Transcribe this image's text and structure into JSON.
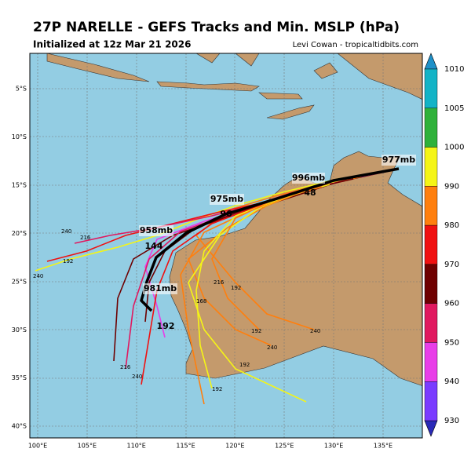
{
  "header": {
    "title": "27P NARELLE - GEFS Tracks and Min. MSLP (hPa)",
    "subtitle": "Initialized at 12z Mar 21 2026",
    "credit": "Levi Cowan - tropicaltidbits.com"
  },
  "map": {
    "lat_labels": [
      "5°S",
      "10°S",
      "15°S",
      "20°S",
      "25°S",
      "30°S",
      "35°S",
      "40°S"
    ],
    "lon_labels": [
      "100°E",
      "105°E",
      "110°E",
      "115°E",
      "120°E",
      "125°E",
      "130°E",
      "135°E"
    ],
    "annotations": [
      "977mb",
      "996mb",
      "975mb",
      "958mb",
      "981mb",
      "48",
      "96",
      "144",
      "192"
    ],
    "hour_labels": [
      "240",
      "216",
      "192",
      "240",
      "216",
      "192",
      "168",
      "240",
      "192",
      "192",
      "240",
      "192",
      "240",
      "216",
      "240"
    ]
  },
  "colorbar": {
    "ticks": [
      1010,
      1005,
      1000,
      990,
      980,
      970,
      960,
      950,
      940,
      930
    ],
    "colors": [
      "#13b3c6",
      "#2fb13a",
      "#f5f516",
      "#ff7f0e",
      "#f01010",
      "#6e0000",
      "#e0195f",
      "#e83ee8",
      "#7a3cff"
    ]
  }
}
